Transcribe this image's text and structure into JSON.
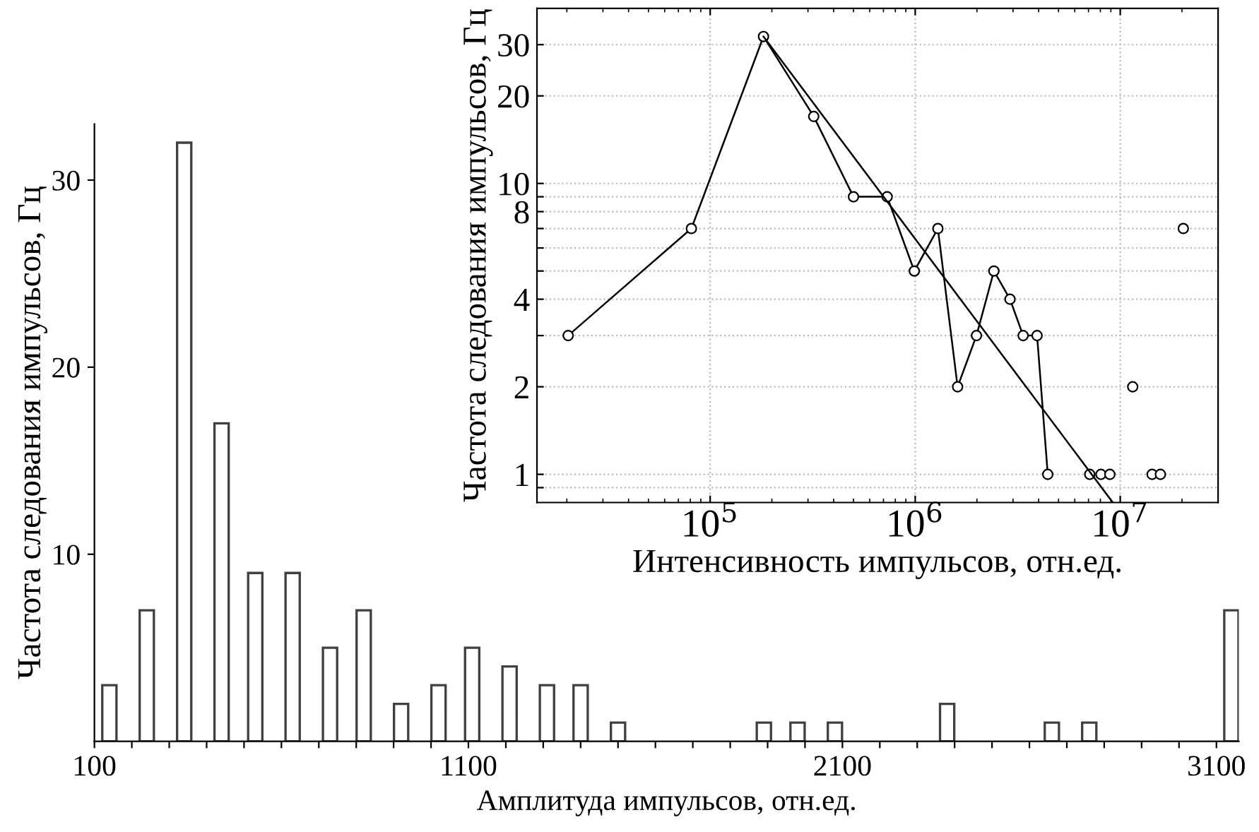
{
  "chart_data": [
    {
      "type": "bar",
      "xlabel": "Амплитуда импульсов, отн.ед.",
      "ylabel": "Частота следования импульсов, Гц",
      "x": [
        140,
        240,
        340,
        440,
        530,
        630,
        730,
        820,
        920,
        1020,
        1110,
        1210,
        1310,
        1400,
        1500,
        1890,
        1980,
        2080,
        2380,
        2660,
        2760,
        3140
      ],
      "values": [
        3,
        7,
        32,
        17,
        9,
        9,
        5,
        7,
        2,
        3,
        5,
        4,
        3,
        3,
        1,
        1,
        1,
        1,
        2,
        1,
        1,
        7
      ],
      "color": "#404040",
      "xlim": [
        100,
        3160
      ],
      "ylim": [
        0,
        33
      ],
      "xticks": [
        100,
        {
          "value": 200,
          "label": null
        },
        {
          "value": 300,
          "label": null
        },
        {
          "value": 400,
          "label": null
        },
        {
          "value": 500,
          "label": null
        },
        {
          "value": 600,
          "label": null
        },
        {
          "value": 700,
          "label": null
        },
        {
          "value": 800,
          "label": null
        },
        {
          "value": 900,
          "label": null
        },
        {
          "value": 1000,
          "label": null
        },
        1100,
        {
          "value": 1200,
          "label": null
        },
        {
          "value": 1300,
          "label": null
        },
        {
          "value": 1400,
          "label": null
        },
        {
          "value": 1500,
          "label": null
        },
        {
          "value": 1600,
          "label": null
        },
        {
          "value": 1700,
          "label": null
        },
        {
          "value": 1800,
          "label": null
        },
        {
          "value": 1900,
          "label": null
        },
        {
          "value": 2000,
          "label": null
        },
        2100,
        {
          "value": 2200,
          "label": null
        },
        {
          "value": 2300,
          "label": null
        },
        {
          "value": 2400,
          "label": null
        },
        {
          "value": 2500,
          "label": null
        },
        {
          "value": 2600,
          "label": null
        },
        {
          "value": 2700,
          "label": null
        },
        {
          "value": 2800,
          "label": null
        },
        {
          "value": 2900,
          "label": null
        },
        {
          "value": 3000,
          "label": null
        },
        3100
      ],
      "yticks": [
        10,
        20,
        30
      ],
      "grid": false
    },
    {
      "type": "line",
      "xlabel": "Интенсивность импульсов, отн.ед.",
      "ylabel": "Частота следования импульсов, Гц",
      "log": "xy",
      "series": [
        {
          "color": "#000000",
          "marker": "circle",
          "x": [
            20300,
            81000,
            182000,
            320000,
            500000,
            730000,
            990000,
            1290000,
            1610000,
            1990000,
            2420000,
            2900000,
            3360000,
            3930000,
            4430000
          ],
          "values": [
            3,
            7,
            32,
            17,
            9,
            9,
            5,
            7,
            2,
            3,
            5,
            4,
            3,
            3,
            1
          ]
        },
        {
          "type": "scatter",
          "color": "#000000",
          "marker": "circle",
          "x": [
            7100000,
            8050000,
            8900000,
            11500000,
            14300000,
            15700000,
            20300000
          ],
          "values": [
            1,
            1,
            1,
            2,
            1,
            1,
            7
          ]
        },
        {
          "color": "#000000",
          "marker": "none",
          "x": [
            182000,
            9200000
          ],
          "values": [
            32,
            0.8
          ]
        }
      ],
      "xlim": [
        14300,
        30000000
      ],
      "ylim": [
        0.8,
        40
      ],
      "xticks": [
        {
          "value": 100000,
          "label": "10$^{5}$"
        },
        {
          "value": 1000000,
          "label": "10$^{6}$"
        },
        {
          "value": 10000000,
          "label": "10$^{7}$"
        }
      ],
      "yticks": [
        {
          "value": 0.9,
          "label": null
        },
        1,
        2,
        {
          "value": 3,
          "label": null
        },
        4,
        {
          "value": 5,
          "label": null
        },
        {
          "value": 6,
          "label": null
        },
        {
          "value": 7,
          "label": null
        },
        8,
        {
          "value": 9,
          "label": null
        },
        10,
        20,
        30
      ],
      "grid": true
    }
  ]
}
